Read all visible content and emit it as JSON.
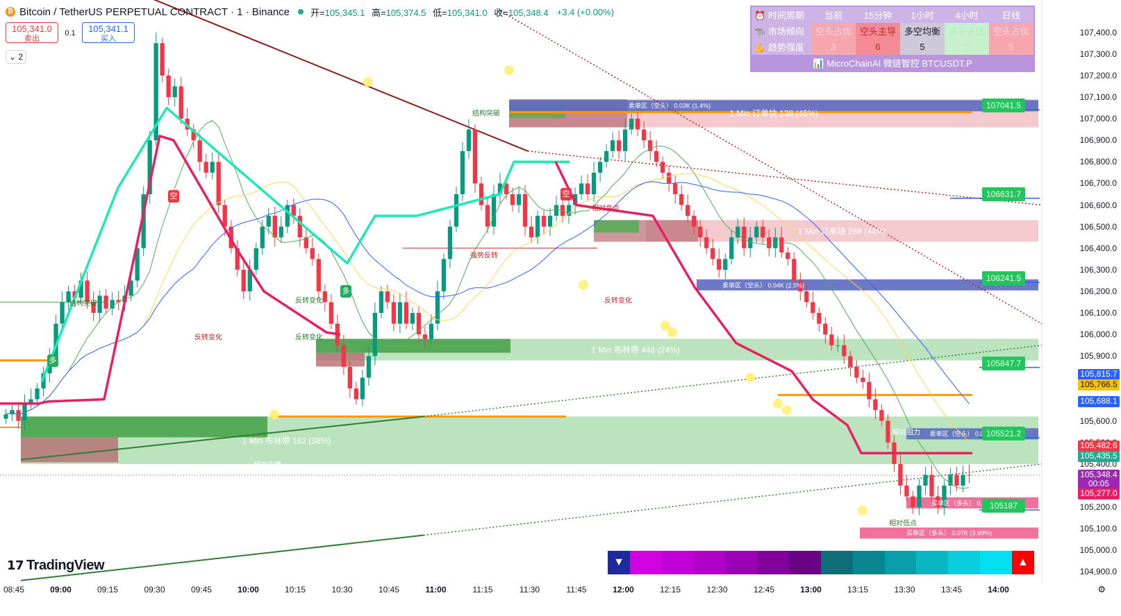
{
  "header": {
    "symbol_title": "Bitcoin / TetherUS PERPETUAL CONTRACT · 1 · Binance",
    "open_label": "开=",
    "open_value": "105,345.1",
    "high_label": "高=",
    "high_value": "105,374.5",
    "low_label": "低=",
    "low_value": "105,341.0",
    "close_label": "收=",
    "close_value": "105,348.4",
    "change": "+3.4 (+0.00%)"
  },
  "trade": {
    "sell_price": "105,341.0",
    "sell_label": "卖出",
    "spread": "0.1",
    "buy_price": "105,341.1",
    "buy_label": "买入",
    "indicator_count": "2"
  },
  "info_table": {
    "headers": [
      "时间周期",
      "当前",
      "15分钟",
      "1小时",
      "4小时",
      "日线"
    ],
    "rows": [
      {
        "label": "市场倾向",
        "cells": [
          "空头占优",
          "空头主导",
          "多空均衡",
          "多头占优",
          "空头占优"
        ]
      },
      {
        "label": "趋势强度",
        "cells": [
          "3",
          "6",
          "5",
          "5",
          "5"
        ]
      }
    ],
    "footer": "MicroChainAI 微链智控 BTCUSDT.P"
  },
  "watermark": "TradingView",
  "chart_data": {
    "type": "candlestick",
    "symbol": "BTCUSDT.P",
    "interval": "1",
    "ylim": [
      104850,
      107550
    ],
    "x_ticks": [
      "08:45",
      "09:00",
      "09:15",
      "09:30",
      "09:45",
      "10:00",
      "10:15",
      "10:30",
      "10:45",
      "11:00",
      "11:15",
      "11:30",
      "11:45",
      "12:00",
      "12:15",
      "12:30",
      "12:45",
      "13:00",
      "13:15",
      "13:30",
      "13:45",
      "14:00"
    ],
    "y_ticks": [
      107400,
      107300,
      107200,
      107100,
      107000,
      106900,
      106800,
      106700,
      106600,
      106500,
      106400,
      106300,
      106200,
      106100,
      106000,
      105900,
      105800,
      105700,
      105600,
      105500,
      105400,
      105300,
      105200,
      105100,
      105000,
      104900
    ],
    "price_tags": [
      {
        "value": "105,815.7",
        "color": "#2962ff",
        "y": 105815.7
      },
      {
        "value": "105,766.5",
        "color": "#f5c400",
        "y": 105766.5,
        "text_color": "#131722"
      },
      {
        "value": "105,688.1",
        "color": "#2962ff",
        "y": 105688.1
      },
      {
        "value": "105,482.6",
        "color": "#f23645",
        "y": 105482.6
      },
      {
        "value": "105,435.5",
        "color": "#22ab94",
        "y": 105435.5
      },
      {
        "value": "105,348.4",
        "color": "#9c27b0",
        "y": 105348.4
      },
      {
        "value": "00:05",
        "color": "#9c27b0",
        "y": 105305
      },
      {
        "value": "105,277.0",
        "color": "#e91e63",
        "y": 105262
      }
    ],
    "candles_close": [
      105630,
      105650,
      105600,
      105680,
      105700,
      105750,
      105820,
      105900,
      106050,
      106150,
      106200,
      106170,
      106250,
      106150,
      106100,
      106180,
      106120,
      106160,
      106150,
      106180,
      106250,
      106400,
      106650,
      106900,
      107350,
      107200,
      107100,
      107150,
      107000,
      106950,
      106900,
      106800,
      106750,
      106800,
      106600,
      106500,
      106400,
      106300,
      106200,
      106300,
      106400,
      106500,
      106550,
      106450,
      106500,
      106600,
      106550,
      106450,
      106400,
      106350,
      106200,
      106150,
      106050,
      105950,
      105850,
      105750,
      105700,
      105800,
      105900,
      106100,
      106200,
      106150,
      106050,
      106150,
      106050,
      106100,
      106000,
      105980,
      106050,
      106200,
      106350,
      106500,
      106650,
      106850,
      106950,
      106700,
      106600,
      106500,
      106650,
      106700,
      106650,
      106600,
      106650,
      106500,
      106450,
      106550,
      106500,
      106550,
      106600,
      106550,
      106600,
      106650,
      106700,
      106650,
      106750,
      106800,
      106850,
      106900,
      106850,
      106950,
      107000,
      106950,
      106900,
      106850,
      106800,
      106750,
      106700,
      106650,
      106600,
      106550,
      106500,
      106450,
      106400,
      106350,
      106300,
      106350,
      106450,
      106500,
      106400,
      106450,
      106500,
      106450,
      106400,
      106450,
      106380,
      106350,
      106250,
      106200,
      106150,
      106100,
      106050,
      106000,
      105950,
      105950,
      105900,
      105850,
      105800,
      105780,
      105700,
      105650,
      105600,
      105500,
      105400,
      105300,
      105250,
      105200,
      105300,
      105350,
      105250,
      105200,
      105300,
      105350,
      105300,
      105350,
      105348
    ],
    "supertrend_pink": [
      [
        0,
        105680
      ],
      [
        55,
        105680
      ],
      [
        70,
        105690
      ],
      [
        150,
        105700
      ],
      [
        230,
        106920
      ],
      [
        250,
        106900
      ],
      [
        340,
        106400
      ],
      [
        380,
        106200
      ],
      [
        470,
        106010
      ],
      [
        490,
        106000
      ]
    ],
    "supertrend_green": [
      [
        60,
        105780
      ],
      [
        170,
        106680
      ],
      [
        240,
        107050
      ],
      [
        500,
        106330
      ],
      [
        540,
        106550
      ],
      [
        600,
        106550
      ],
      [
        720,
        106650
      ],
      [
        740,
        106800
      ],
      [
        820,
        106800
      ]
    ],
    "pink_line_2": [
      [
        800,
        106800
      ],
      [
        830,
        106600
      ],
      [
        940,
        106550
      ],
      [
        1000,
        106220
      ],
      [
        1060,
        105960
      ],
      [
        1140,
        105830
      ],
      [
        1170,
        105700
      ],
      [
        1220,
        105580
      ],
      [
        1240,
        105450
      ],
      [
        1400,
        105450
      ]
    ],
    "order_blocks": [
      {
        "label": "1 Min 订单块 138 (45%)",
        "top": 107090,
        "bottom": 106960,
        "color": "#f0b8bf"
      },
      {
        "label": "1 Min 订单块 269 (44%)",
        "top": 106530,
        "bottom": 106430,
        "color": "#f0b8bf"
      },
      {
        "label": "1 Min 布林带 448 (24%)",
        "top": 105980,
        "bottom": 105880,
        "color": "#a3d9a8"
      },
      {
        "label": "1 Min 布林带 162 (38%)",
        "top": 105620,
        "bottom": 105400,
        "color": "#a3d9a8"
      }
    ],
    "zones": [
      {
        "label": "卖单区（空头）",
        "volume": "0.03K (1.4%)",
        "y": 107060
      },
      {
        "label": "卖单区（空头）",
        "volume": "0.04K (2.5%)",
        "y": 106230
      },
      {
        "label": "卖单区（空头）",
        "volume": "0.03K (1.63%)",
        "y": 105540
      },
      {
        "label": "买单区（多头）",
        "volume": "0.1K (5.68%)",
        "y": 105220
      },
      {
        "label": "买单区（多头）",
        "volume": "0.07K (3.99%)",
        "y": 105080
      }
    ],
    "green_level_tags": [
      {
        "value": "107041.5",
        "y": 107041.5
      },
      {
        "value": "106631.7",
        "y": 106631.7
      },
      {
        "value": "106241.5",
        "y": 106241.5
      },
      {
        "value": "105847.7",
        "y": 105847.7
      },
      {
        "value": "105521.2",
        "y": 105521.2
      },
      {
        "value": "105187",
        "y": 105187
      }
    ],
    "annotations": [
      {
        "text": "结构突破",
        "color": "#2e7d32"
      },
      {
        "text": "反转变化",
        "color": "#2e7d32"
      },
      {
        "text": "反转变化",
        "color": "#c62828"
      },
      {
        "text": "反转变化",
        "color": "#2e7d32"
      },
      {
        "text": "结构突破",
        "color": "#2e7d32"
      },
      {
        "text": "相对高点",
        "color": "#c62828"
      },
      {
        "text": "强势反转",
        "color": "#c62828"
      },
      {
        "text": "反转变化",
        "color": "#c62828"
      },
      {
        "text": "相对支撑",
        "color": "#ffffff"
      },
      {
        "text": "相对阻力",
        "color": "#ffffff"
      },
      {
        "text": "相对低点",
        "color": "#2e7d32"
      }
    ],
    "signals": [
      {
        "text": "空",
        "color": "#f23645"
      },
      {
        "text": "空",
        "color": "#f23645"
      },
      {
        "text": "多",
        "color": "#22ab5e"
      },
      {
        "text": "多",
        "color": "#22ab5e"
      }
    ]
  }
}
